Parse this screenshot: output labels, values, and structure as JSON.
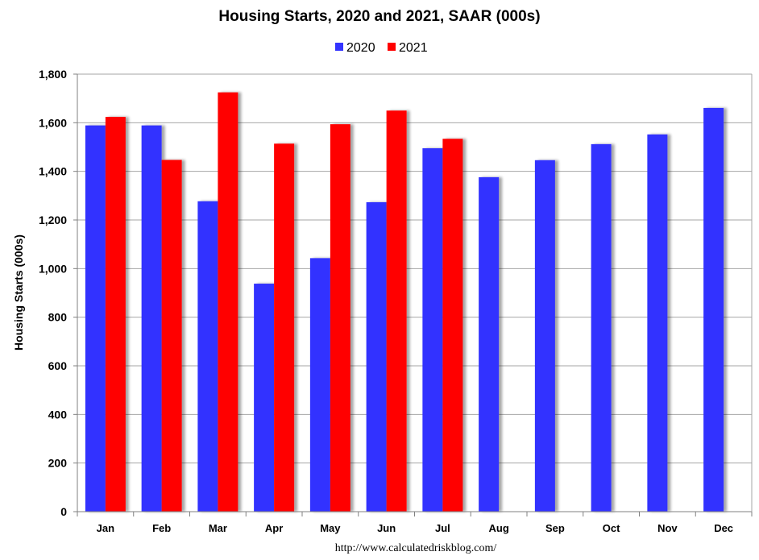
{
  "chart_data": {
    "type": "bar",
    "title": "Housing Starts,  2020 and 2021, SAAR (000s)",
    "ylabel": "Housing Starts (000s)",
    "xlabel": "",
    "ylim": [
      0,
      1800
    ],
    "ytick_step": 200,
    "grid": true,
    "legend_position": "top-center",
    "categories": [
      "Jan",
      "Feb",
      "Mar",
      "Apr",
      "May",
      "Jun",
      "Jul",
      "Aug",
      "Sep",
      "Oct",
      "Nov",
      "Dec"
    ],
    "series": [
      {
        "name": "2020",
        "color": "#3333ff",
        "values": [
          1589,
          1589,
          1277,
          938,
          1043,
          1273,
          1495,
          1376,
          1446,
          1512,
          1552,
          1661
        ]
      },
      {
        "name": "2021",
        "color": "#ff0000",
        "values": [
          1624,
          1447,
          1725,
          1514,
          1594,
          1650,
          1534,
          null,
          null,
          null,
          null,
          null
        ]
      }
    ],
    "source": "http://www.calculatedriskblog.com/"
  }
}
